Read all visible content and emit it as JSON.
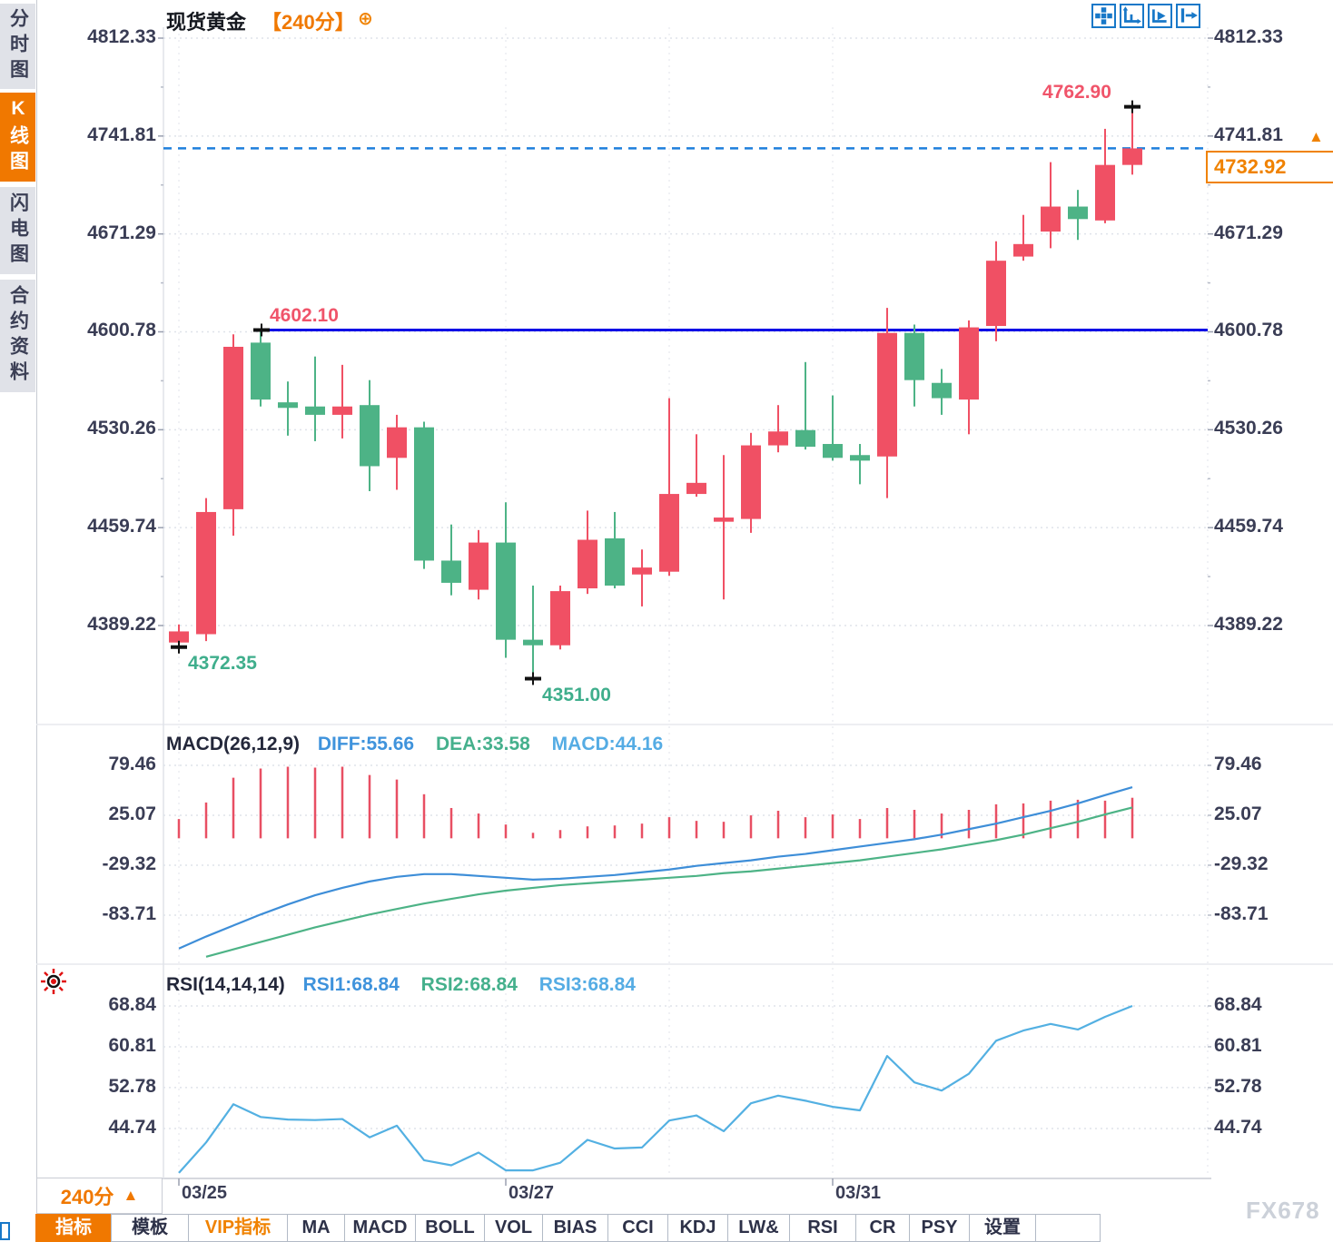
{
  "window": {
    "watermark": "FX678"
  },
  "sidebar": {
    "items": [
      {
        "label": "分时图",
        "active": false
      },
      {
        "label": "K线图",
        "active": true
      },
      {
        "label": "闪电图",
        "active": false
      },
      {
        "label": "合约资料",
        "active": false
      }
    ]
  },
  "header": {
    "symbol": "现货黄金",
    "period_tag": "【240分】",
    "expand_icon_glyph": "⊕",
    "toolbar_icons": [
      "move-tool",
      "axis-scale",
      "auto-play",
      "exit-right"
    ]
  },
  "annotations": {
    "high": "4762.90",
    "resistance": "4602.10",
    "low_left": "4372.35",
    "low_bottom": "4351.00",
    "current": "4732.92",
    "arrow_up_glyph": "▲"
  },
  "footer": {
    "period_button": "240分",
    "period_arrow_glyph": "▲",
    "tabs": [
      {
        "label": "指标",
        "state": "active"
      },
      {
        "label": "模板",
        "state": "normal"
      },
      {
        "label": "VIP指标",
        "state": "vip"
      },
      {
        "label": "MA",
        "state": "normal"
      },
      {
        "label": "MACD",
        "state": "normal"
      },
      {
        "label": "BOLL",
        "state": "normal"
      },
      {
        "label": "VOL",
        "state": "normal"
      },
      {
        "label": "BIAS",
        "state": "normal"
      },
      {
        "label": "CCI",
        "state": "normal"
      },
      {
        "label": "KDJ",
        "state": "normal"
      },
      {
        "label": "LW&",
        "state": "normal"
      },
      {
        "label": "RSI",
        "state": "normal"
      },
      {
        "label": "CR",
        "state": "normal"
      },
      {
        "label": "PSY",
        "state": "normal"
      },
      {
        "label": "设置",
        "state": "normal"
      }
    ]
  },
  "colors": {
    "up": "#f05064",
    "down": "#4db386",
    "hist": "#e84f63",
    "diff_line": "#3e8ed8",
    "dea_line": "#4db386",
    "rsi_line": "#53b0e2",
    "hline": "#0a0ae6",
    "current_line": "#1e7fdc",
    "accent_orange": "#f07800",
    "axis_text": "#3a3d55",
    "grid": "#dfe3ea",
    "icon_blue": "#1878c8"
  },
  "chart_data": [
    {
      "type": "candlestick",
      "title": "现货黄金 240分",
      "convention": "red=up green=down (Chinese)",
      "y_ticks": [
        "4812.33",
        "4741.81",
        "4671.29",
        "4600.78",
        "4530.26",
        "4459.74",
        "4389.22"
      ],
      "ylim": [
        4340,
        4820
      ],
      "x_labels": [
        {
          "label": "03/25",
          "index": 0
        },
        {
          "label": "03/27",
          "index": 12
        },
        {
          "label": "03/31",
          "index": 24
        }
      ],
      "horizontal_line": 4602.1,
      "current_price_line": 4732.92,
      "high_marker": 4762.9,
      "low_markers": [
        4372.35,
        4351.0
      ],
      "columns": [
        "open",
        "high",
        "low",
        "close"
      ],
      "candles": [
        [
          4377,
          4390,
          4372.35,
          4385
        ],
        [
          4383,
          4481,
          4378,
          4471
        ],
        [
          4473,
          4599,
          4454,
          4590
        ],
        [
          4593,
          4602.1,
          4547,
          4552
        ],
        [
          4550,
          4565,
          4526,
          4546
        ],
        [
          4547,
          4583,
          4522,
          4541
        ],
        [
          4541,
          4577,
          4524,
          4547
        ],
        [
          4548,
          4566,
          4486,
          4504
        ],
        [
          4510,
          4541,
          4487,
          4532
        ],
        [
          4532,
          4536,
          4430,
          4436
        ],
        [
          4436,
          4462,
          4411,
          4420
        ],
        [
          4415,
          4458,
          4408,
          4449
        ],
        [
          4449,
          4478,
          4366,
          4379
        ],
        [
          4379,
          4418,
          4351.0,
          4375
        ],
        [
          4375,
          4418,
          4372,
          4414
        ],
        [
          4416,
          4472,
          4412,
          4451
        ],
        [
          4452,
          4471,
          4416,
          4418
        ],
        [
          4426,
          4444,
          4403,
          4431
        ],
        [
          4428,
          4553,
          4425,
          4484
        ],
        [
          4484,
          4527,
          4482,
          4492
        ],
        [
          4464,
          4512,
          4408,
          4467
        ],
        [
          4466,
          4528,
          4456,
          4519
        ],
        [
          4519,
          4548,
          4514,
          4529
        ],
        [
          4530,
          4579,
          4516,
          4518
        ],
        [
          4520,
          4555,
          4508,
          4510
        ],
        [
          4512,
          4520,
          4491,
          4508
        ],
        [
          4511,
          4618,
          4481,
          4600
        ],
        [
          4600,
          4606,
          4547,
          4566
        ],
        [
          4564,
          4574,
          4541,
          4553
        ],
        [
          4552,
          4609,
          4527,
          4604
        ],
        [
          4605,
          4666,
          4594,
          4652
        ],
        [
          4655,
          4685,
          4652,
          4664
        ],
        [
          4673,
          4723,
          4661,
          4691
        ],
        [
          4691,
          4703,
          4667,
          4682
        ],
        [
          4681,
          4747,
          4679,
          4721
        ],
        [
          4721,
          4762.9,
          4714,
          4732.92
        ]
      ]
    },
    {
      "type": "bar+line",
      "title": "MACD(26,12,9)",
      "labels": {
        "title": "MACD(26,12,9)",
        "diff": "DIFF:55.66",
        "dea": "DEA:33.58",
        "macd": "MACD:44.16"
      },
      "y_ticks": [
        "79.46",
        "25.07",
        "-29.32",
        "-83.71"
      ],
      "histogram": [
        21,
        39,
        66,
        76,
        78,
        77,
        78,
        69,
        64,
        48,
        33,
        27,
        15,
        6,
        9,
        13,
        14,
        16,
        23,
        19,
        18,
        25,
        30,
        23,
        26,
        21,
        33,
        31,
        27,
        31,
        37,
        38,
        41,
        42,
        41,
        44.16
      ],
      "diff": [
        -120,
        -107,
        -95,
        -83,
        -72,
        -62,
        -54,
        -47,
        -42,
        -39,
        -39,
        -41,
        -43,
        -45,
        -44,
        -42,
        -40,
        -37,
        -34,
        -30,
        -27,
        -24,
        -20,
        -17,
        -13,
        -9,
        -5,
        -1,
        4,
        10,
        16,
        23,
        30,
        38,
        47,
        55.66
      ],
      "dea_start_index": 1,
      "dea": [
        -129,
        -121,
        -113,
        -105,
        -97,
        -90,
        -83,
        -77,
        -71,
        -66,
        -61,
        -57,
        -54,
        -51,
        -49,
        -47,
        -45,
        -43,
        -41,
        -38,
        -36,
        -33,
        -30,
        -27,
        -24,
        -20,
        -16,
        -12,
        -7,
        -2,
        4,
        11,
        18,
        26,
        33.58
      ]
    },
    {
      "type": "line",
      "title": "RSI(14,14,14)",
      "labels": {
        "title": "RSI(14,14,14)",
        "rsi1": "RSI1:68.84",
        "rsi2": "RSI2:68.84",
        "rsi3": "RSI3:68.84"
      },
      "y_ticks": [
        "68.84",
        "60.81",
        "52.78",
        "44.74"
      ],
      "rsi": [
        36,
        42,
        49.5,
        47,
        46.5,
        46.4,
        46.6,
        43,
        45.3,
        38.5,
        37.5,
        40,
        36.5,
        36.5,
        38,
        42.5,
        40.8,
        41,
        46.3,
        47.3,
        44.2,
        49.7,
        51.2,
        50.2,
        49,
        48.3,
        59,
        53.8,
        52.2,
        55.5,
        62,
        64,
        65.3,
        64.2,
        66.7,
        68.84
      ]
    }
  ]
}
